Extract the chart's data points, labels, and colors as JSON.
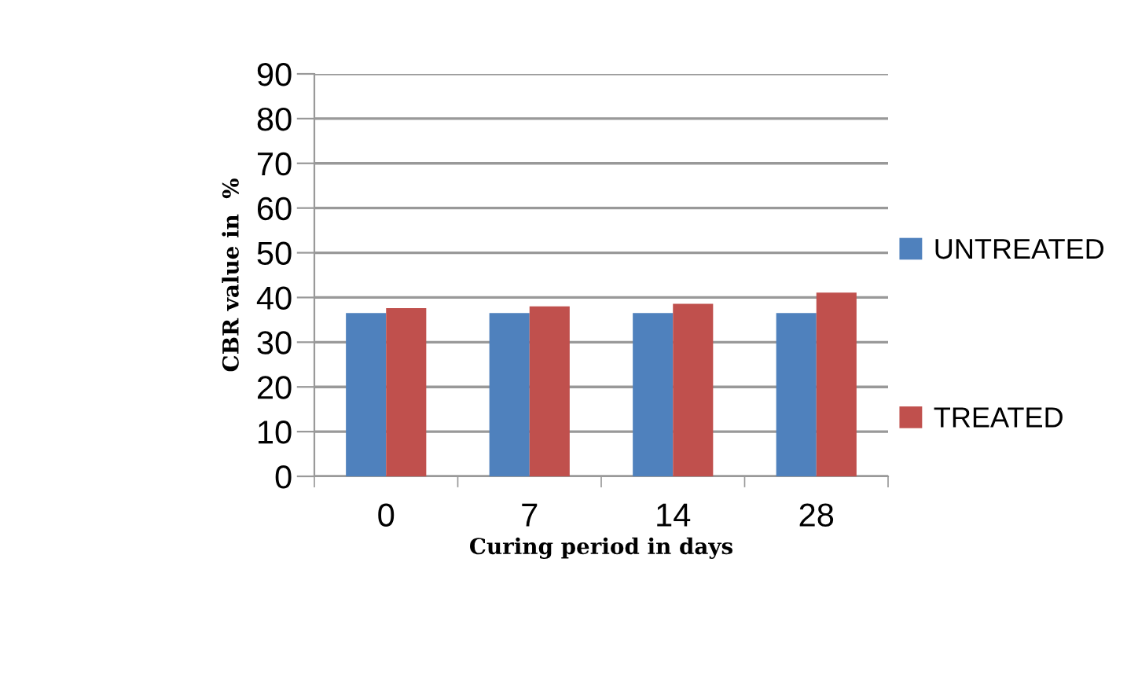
{
  "chart_data": {
    "type": "bar",
    "xlabel": "Curing period in days",
    "ylabel": "CBR value in  %",
    "categories": [
      "0",
      "7",
      "14",
      "28"
    ],
    "series": [
      {
        "name": "UNTREATED",
        "color": "#4f81bd",
        "values": [
          36.5,
          36.5,
          36.5,
          36.5
        ]
      },
      {
        "name": "TREATED",
        "color": "#c0504d",
        "values": [
          37.6,
          38.0,
          38.6,
          41.1
        ]
      }
    ],
    "ylim": [
      0,
      90
    ],
    "yticks": [
      0,
      10,
      20,
      30,
      40,
      50,
      60,
      70,
      80,
      90
    ],
    "grid": "y",
    "legend": "right"
  }
}
